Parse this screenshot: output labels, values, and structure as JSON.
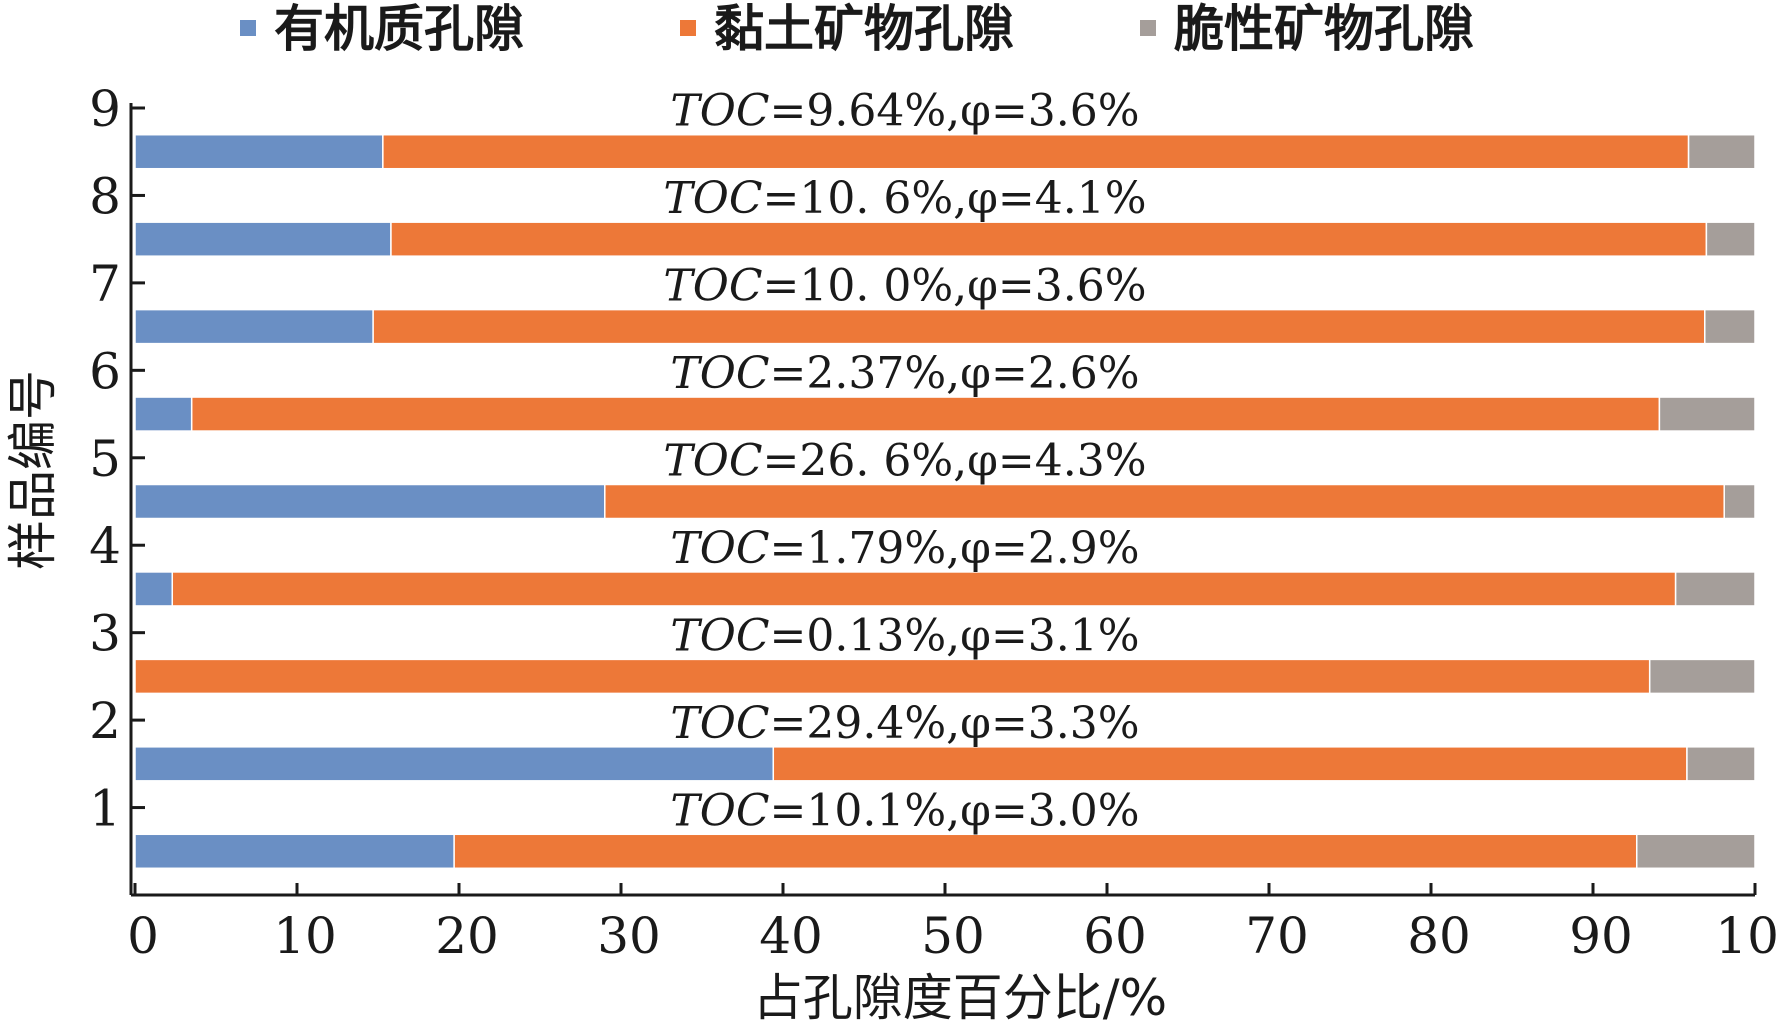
{
  "chart_data": {
    "type": "bar",
    "orientation": "horizontal",
    "stacked": true,
    "title": "",
    "xlabel": "占孔隙度百分比/%",
    "ylabel": "样品编号",
    "xlim": [
      0,
      100
    ],
    "ylim": [
      0,
      9
    ],
    "x_ticks": [
      "0",
      "10",
      "20",
      "30",
      "40",
      "50",
      "60",
      "70",
      "80",
      "90",
      "100"
    ],
    "y_ticks": [
      "1",
      "2",
      "3",
      "4",
      "5",
      "6",
      "7",
      "8",
      "9"
    ],
    "legend_position": "top",
    "grid": false,
    "categories": [
      "1",
      "2",
      "3",
      "4",
      "5",
      "6",
      "7",
      "8",
      "9"
    ],
    "series": [
      {
        "name": "有机质孔隙",
        "color": "#6a8fc4",
        "values": [
          19.7,
          39.4,
          0,
          2.3,
          29.0,
          3.5,
          14.7,
          15.8,
          15.3
        ]
      },
      {
        "name": "黏土矿物孔隙",
        "color": "#ed7838",
        "values": [
          73.0,
          56.4,
          93.5,
          92.8,
          69.1,
          90.6,
          82.2,
          81.2,
          80.6
        ]
      },
      {
        "name": "脆性矿物孔隙",
        "color": "#a59e9a",
        "values": [
          7.3,
          4.2,
          6.5,
          4.9,
          1.9,
          5.9,
          3.1,
          3.0,
          4.1
        ]
      }
    ],
    "annotations": [
      {
        "toc": "TOC",
        "rest": "=10.1%,φ=3.0%"
      },
      {
        "toc": "TOC",
        "rest": "=29.4%,φ=3.3%"
      },
      {
        "toc": "TOC",
        "rest": "=0.13%,φ=3.1%"
      },
      {
        "toc": "TOC",
        "rest": "=1.79%,φ=2.9%"
      },
      {
        "toc": "TOC",
        "rest": "=26. 6%,φ=4.3%"
      },
      {
        "toc": "TOC",
        "rest": "=2.37%,φ=2.6%"
      },
      {
        "toc": "TOC",
        "rest": "=10. 0%,φ=3.6%"
      },
      {
        "toc": "TOC",
        "rest": "=10. 6%,φ=4.1%"
      },
      {
        "toc": "TOC",
        "rest": "=9.64%,φ=3.6%"
      }
    ]
  }
}
